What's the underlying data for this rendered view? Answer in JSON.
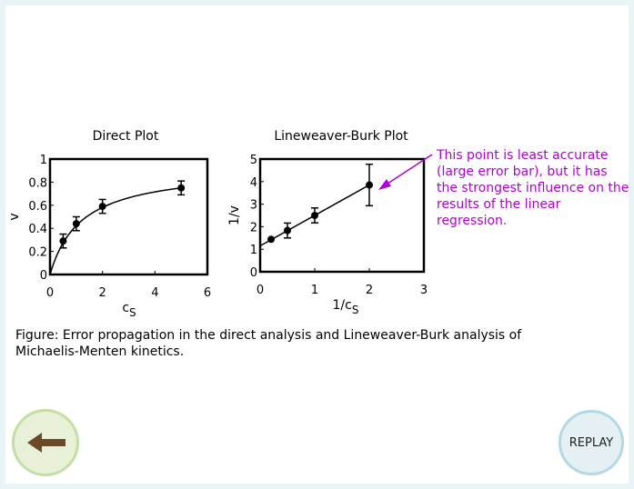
{
  "chart_data": [
    {
      "type": "scatter",
      "title": "Direct Plot",
      "xlabel": "c",
      "xlabel_sub": "S",
      "ylabel": "v",
      "xlim": [
        0,
        6
      ],
      "ylim": [
        0,
        1
      ],
      "xticks": [
        {
          "v": 0,
          "t": "0"
        },
        {
          "v": 2,
          "t": "2"
        },
        {
          "v": 4,
          "t": "4"
        },
        {
          "v": 6,
          "t": "6"
        }
      ],
      "yticks": [
        {
          "v": 0,
          "t": "0"
        },
        {
          "v": 0.2,
          "t": "0.2"
        },
        {
          "v": 0.4,
          "t": "0.4"
        },
        {
          "v": 0.6,
          "t": "0.6"
        },
        {
          "v": 0.8,
          "t": "0.8"
        },
        {
          "v": 1,
          "t": "1"
        }
      ],
      "points": [
        {
          "x": 0.5,
          "y": 0.29,
          "err": 0.06
        },
        {
          "x": 1.0,
          "y": 0.44,
          "err": 0.06
        },
        {
          "x": 2.0,
          "y": 0.59,
          "err": 0.06
        },
        {
          "x": 5.0,
          "y": 0.75,
          "err": 0.06
        }
      ],
      "fit_curve": {
        "model": "michaelis-menten",
        "vmax": 0.93,
        "km": 1.2
      }
    },
    {
      "type": "scatter",
      "title": "Lineweaver-Burk Plot",
      "xlabel": "1/c",
      "xlabel_sub": "S",
      "ylabel": "1/v",
      "xlim": [
        0,
        3
      ],
      "ylim": [
        0,
        5
      ],
      "xticks": [
        {
          "v": 0,
          "t": "0"
        },
        {
          "v": 1,
          "t": "1"
        },
        {
          "v": 2,
          "t": "2"
        },
        {
          "v": 3,
          "t": "3"
        }
      ],
      "yticks": [
        {
          "v": 0,
          "t": "0"
        },
        {
          "v": 1,
          "t": "1"
        },
        {
          "v": 2,
          "t": "2"
        },
        {
          "v": 3,
          "t": "3"
        },
        {
          "v": 4,
          "t": "4"
        },
        {
          "v": 5,
          "t": "5"
        }
      ],
      "points": [
        {
          "x": 0.2,
          "y": 1.44,
          "err": 0.0
        },
        {
          "x": 0.5,
          "y": 1.83,
          "err": 0.33
        },
        {
          "x": 1.0,
          "y": 2.5,
          "err": 0.33
        },
        {
          "x": 2.0,
          "y": 3.85,
          "err": 0.92
        }
      ],
      "fit_line": {
        "x": [
          0,
          2.0
        ],
        "y": [
          1.15,
          3.85
        ]
      }
    }
  ],
  "annotation": {
    "text": "This point is least accurate (large error bar), but it has the strongest influence on the results of the linear regression.",
    "color": "#b000d8"
  },
  "caption": "Figure: Error propagation in the direct analysis and Lineweaver-Burk analysis of Michaelis-Menten kinetics.",
  "buttons": {
    "back_icon": "left-arrow-icon",
    "replay_label": "REPLAY"
  }
}
